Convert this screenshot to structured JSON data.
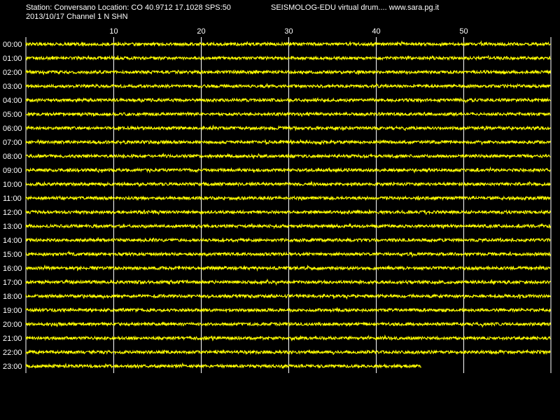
{
  "header": {
    "station_line": "Station: Conversano Location: CO 40.9712 17.1028 SPS:50",
    "date_line": "2013/10/17  Channel 1 N SHN",
    "credit": "SEISMOLOG-EDU virtual drum.... www.sara.pg.it"
  },
  "colors": {
    "background": "#000000",
    "trace": "#ffff00",
    "grid": "#ffffff",
    "text": "#ffffff"
  },
  "chart_data": {
    "type": "line",
    "x_unit_ticks": [
      10,
      20,
      30,
      40,
      50
    ],
    "xlim": [
      0,
      60
    ],
    "grid": true,
    "rows": [
      {
        "label": "00:00",
        "end_minute": 60
      },
      {
        "label": "01:00",
        "end_minute": 60
      },
      {
        "label": "02:00",
        "end_minute": 60
      },
      {
        "label": "03:00",
        "end_minute": 60
      },
      {
        "label": "04:00",
        "end_minute": 60
      },
      {
        "label": "05:00",
        "end_minute": 60
      },
      {
        "label": "06:00",
        "end_minute": 60
      },
      {
        "label": "07:00",
        "end_minute": 60
      },
      {
        "label": "08:00",
        "end_minute": 60
      },
      {
        "label": "09:00",
        "end_minute": 60
      },
      {
        "label": "10:00",
        "end_minute": 60
      },
      {
        "label": "11:00",
        "end_minute": 60
      },
      {
        "label": "12:00",
        "end_minute": 60
      },
      {
        "label": "13:00",
        "end_minute": 60
      },
      {
        "label": "14:00",
        "end_minute": 60
      },
      {
        "label": "15:00",
        "end_minute": 60
      },
      {
        "label": "16:00",
        "end_minute": 60
      },
      {
        "label": "17:00",
        "end_minute": 60
      },
      {
        "label": "18:00",
        "end_minute": 60
      },
      {
        "label": "19:00",
        "end_minute": 60
      },
      {
        "label": "20:00",
        "end_minute": 60
      },
      {
        "label": "21:00",
        "end_minute": 60
      },
      {
        "label": "22:00",
        "end_minute": 60
      },
      {
        "label": "23:00",
        "end_minute": 45.2
      }
    ]
  }
}
